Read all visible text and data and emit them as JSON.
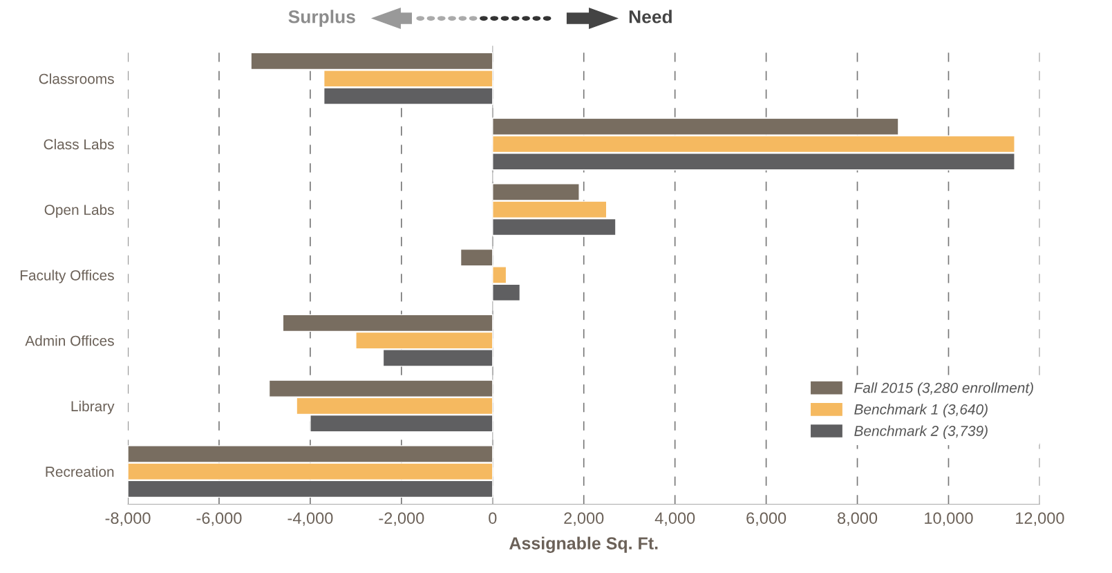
{
  "chart_data": {
    "type": "bar",
    "orientation": "horizontal",
    "categories": [
      "Classrooms",
      "Class Labs",
      "Open Labs",
      "Faculty Offices",
      "Admin Offices",
      "Library",
      "Recreation"
    ],
    "series": [
      {
        "name": "Fall 2015 (3,280 enrollment)",
        "color": "#786d60",
        "values": [
          -5300,
          8900,
          1900,
          -700,
          -4600,
          -4900,
          -8000
        ]
      },
      {
        "name": "Benchmark 1 (3,640)",
        "color": "#f5b960",
        "values": [
          -3700,
          11450,
          2500,
          300,
          -3000,
          -4300,
          -8000
        ]
      },
      {
        "name": "Benchmark 2 (3,739)",
        "color": "#5f5f61",
        "values": [
          -3700,
          11450,
          2700,
          600,
          -2400,
          -4000,
          -8000
        ]
      }
    ],
    "xlim": [
      -8000,
      12000
    ],
    "xticks": [
      {
        "value": -8000,
        "label": "-8,000"
      },
      {
        "value": -6000,
        "label": "-6,000"
      },
      {
        "value": -4000,
        "label": "-4,000"
      },
      {
        "value": -2000,
        "label": "-2,000"
      },
      0,
      {
        "value": 2000,
        "label": "2,000"
      },
      {
        "value": 4000,
        "label": "4,000"
      },
      {
        "value": 6000,
        "label": "6,000"
      },
      {
        "value": 8000,
        "label": "8,000"
      },
      {
        "value": 10000,
        "label": "10,000"
      },
      {
        "value": 12000,
        "label": "12,000"
      }
    ],
    "xlabel": "Assignable Sq. Ft.",
    "annotations": [
      "Surplus",
      "Need"
    ],
    "grid": "x",
    "legend": "bottom right"
  }
}
